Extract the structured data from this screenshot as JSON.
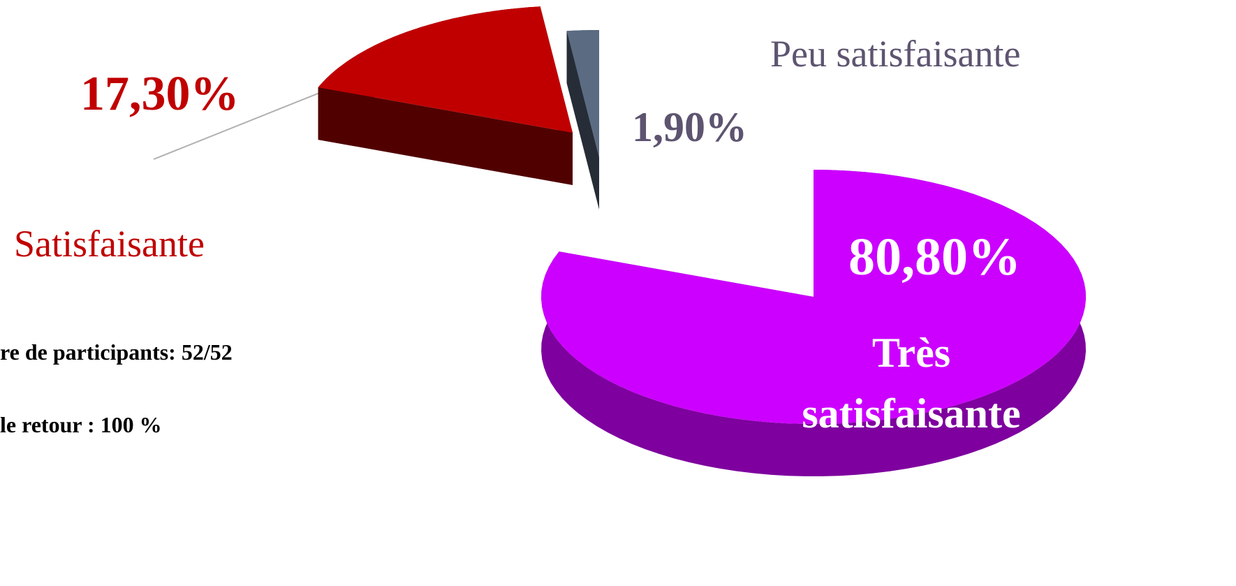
{
  "chart_data": {
    "type": "pie",
    "categories": [
      "Très satisfaisante",
      "Satisfaisante",
      "Peu satisfaisante"
    ],
    "values": [
      80.8,
      17.3,
      1.9
    ],
    "value_labels": [
      "80,80%",
      "17,30%",
      "1,90%"
    ],
    "colors": [
      "#cc00ff",
      "#c00000",
      "#5b6b82"
    ]
  },
  "annotations": [
    "re de participants: 52/52",
    "le retour : 100 %"
  ]
}
